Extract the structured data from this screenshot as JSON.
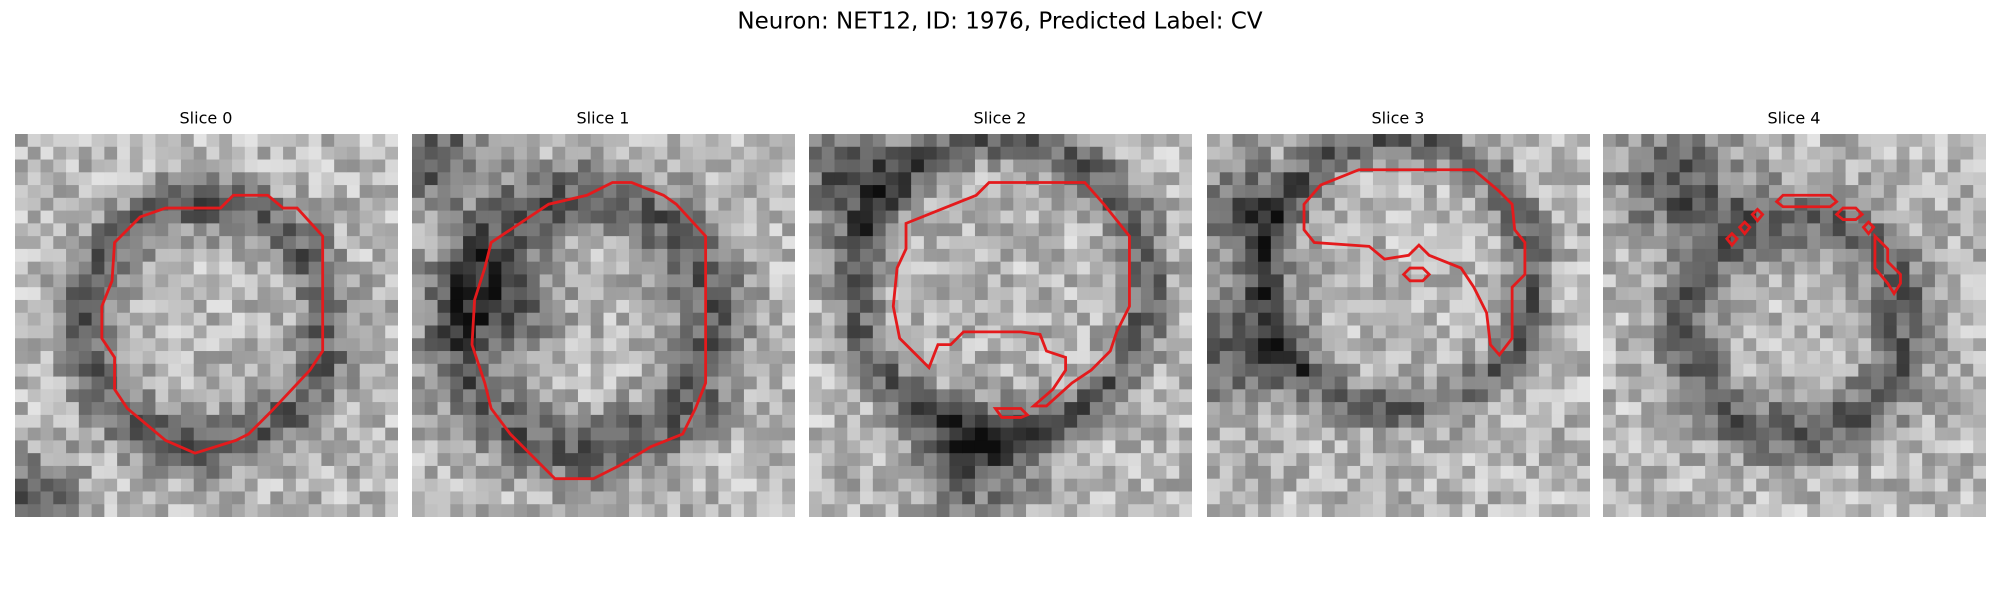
{
  "title": "Neuron: NET12, ID: 1976, Predicted Label: CV",
  "panels": [
    {
      "title": "Slice 0"
    },
    {
      "title": "Slice 1"
    },
    {
      "title": "Slice 2"
    },
    {
      "title": "Slice 3"
    },
    {
      "title": "Slice 4"
    }
  ]
}
